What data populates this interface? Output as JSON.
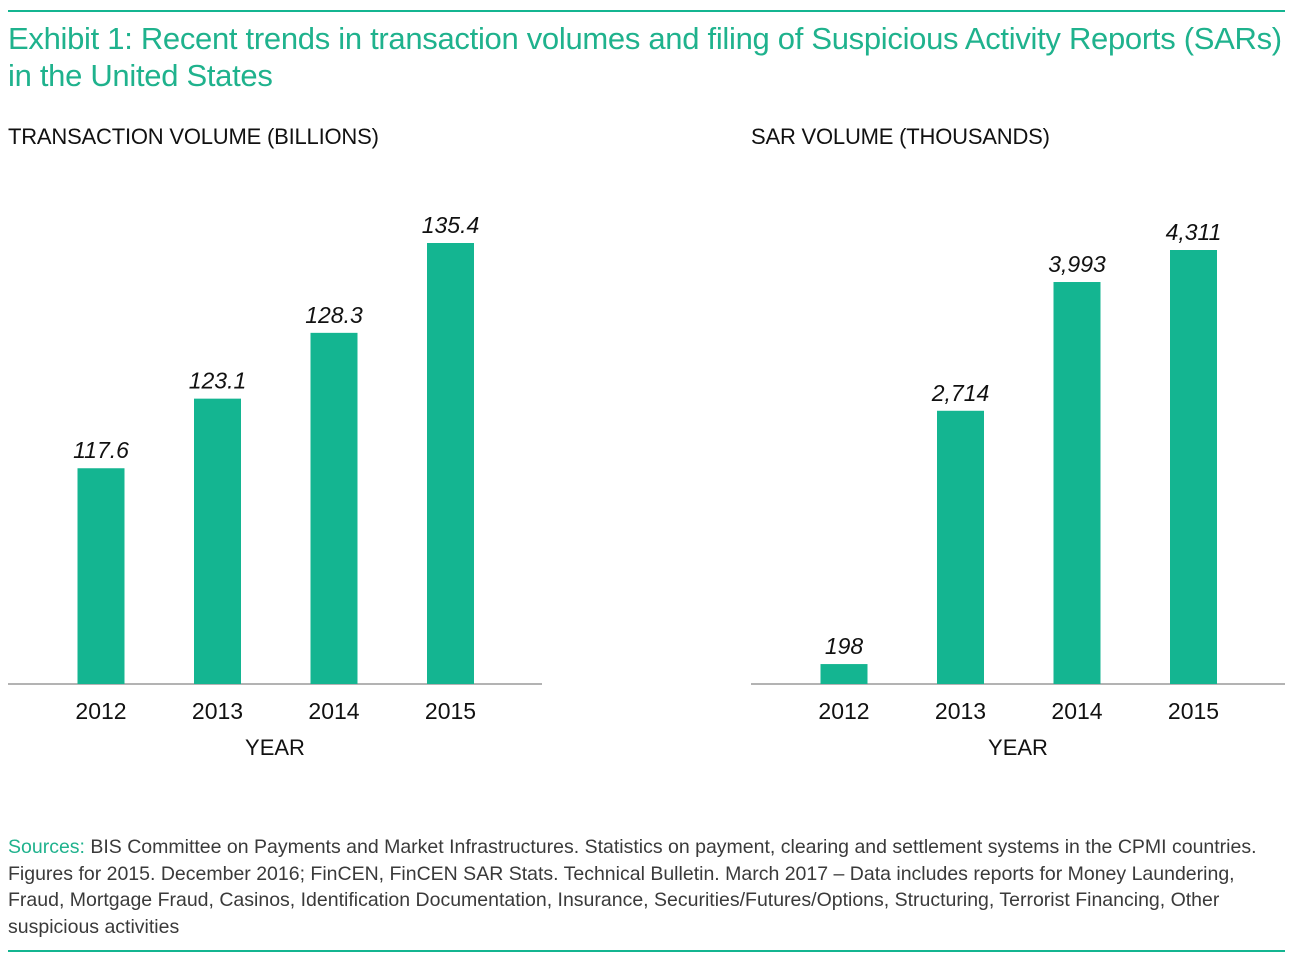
{
  "title": "Exhibit 1: Recent trends in transaction volumes and filing of Suspicious Activity Reports (SARs) in the United States",
  "colors": {
    "accent": "#1fb28d",
    "bar": "#14b591",
    "axis": "#9a9a9a",
    "text": "#111111"
  },
  "chart_data": [
    {
      "type": "bar",
      "title": "TRANSACTION VOLUME (BILLIONS)",
      "xlabel": "YEAR",
      "ylabel": "",
      "categories": [
        "2012",
        "2013",
        "2014",
        "2015"
      ],
      "values": [
        117.6,
        123.1,
        128.3,
        135.4
      ],
      "value_labels": [
        "117.6",
        "123.1",
        "128.3",
        "135.4"
      ],
      "grid": false,
      "legend": "none"
    },
    {
      "type": "bar",
      "title": "SAR VOLUME (THOUSANDS)",
      "xlabel": "YEAR",
      "ylabel": "",
      "categories": [
        "2012",
        "2013",
        "2014",
        "2015"
      ],
      "values": [
        198,
        2714,
        3993,
        4311
      ],
      "value_labels": [
        "198",
        "2,714",
        "3,993",
        "4,311"
      ],
      "grid": false,
      "legend": "none"
    }
  ],
  "sources": {
    "label": "Sources:",
    "text": " BIS Committee on Payments and Market Infrastructures. Statistics on payment, clearing and settlement systems in the CPMI countries. Figures for 2015. December 2016; FinCEN, FinCEN SAR Stats. Technical Bulletin. March 2017 – Data includes reports for Money Laundering, Fraud, Mortgage Fraud, Casinos, Identification Documentation, Insurance, Securities/Futures/Options, Structuring, Terrorist Financing, Other suspicious activities"
  }
}
